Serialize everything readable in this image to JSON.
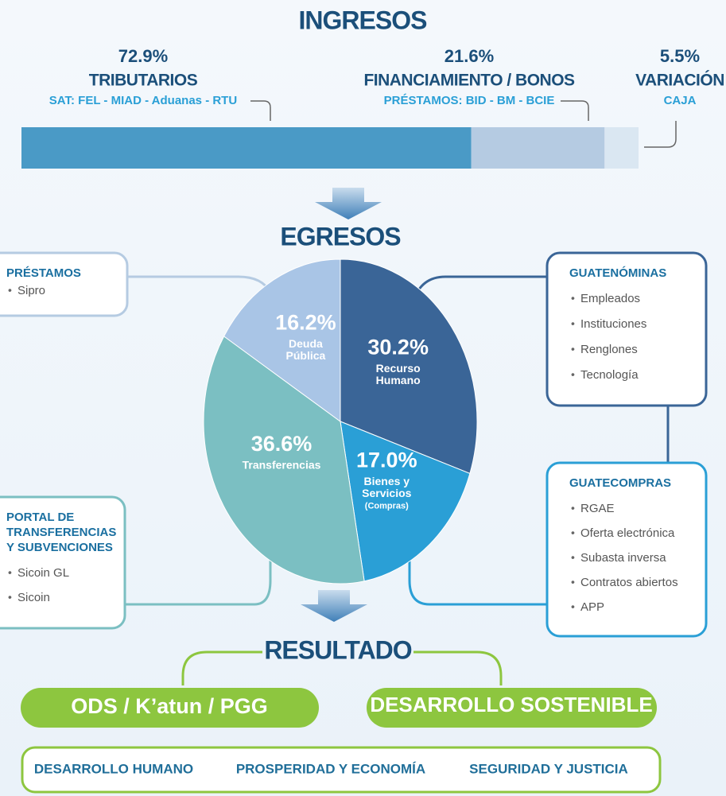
{
  "ingresos": {
    "title": "INGRESOS",
    "segments": [
      {
        "value": 72.9,
        "value_label": "72.9%",
        "name": "TRIBUTARIOS",
        "detail": "SAT:  FEL - MIAD - Aduanas - RTU",
        "color": "#4a9ac6"
      },
      {
        "value": 21.6,
        "value_label": "21.6%",
        "name": "FINANCIAMIENTO / BONOS",
        "detail": "PRÉSTAMOS:  BID - BM - BCIE",
        "color": "#b5cbe2"
      },
      {
        "value": 5.5,
        "value_label": "5.5%",
        "name": "VARIACIÓN",
        "detail": "CAJA",
        "color": "#dae7f2"
      }
    ]
  },
  "egresos": {
    "title": "EGRESOS",
    "slices": [
      {
        "value": 30.2,
        "value_label": "30.2%",
        "name": [
          "Recurso",
          "Humano"
        ],
        "color": "#3a6597"
      },
      {
        "value": 17.0,
        "value_label": "17.0%",
        "name": [
          "Bienes y",
          "Servicios",
          "(Compras)"
        ],
        "color": "#2a9fd6"
      },
      {
        "value": 36.6,
        "value_label": "36.6%",
        "name": [
          "Transferencias"
        ],
        "color": "#7bbfc2"
      },
      {
        "value": 16.2,
        "value_label": "16.2%",
        "name": [
          "Deuda",
          "Pública"
        ],
        "color": "#a9c5e6"
      }
    ]
  },
  "boxes": [
    {
      "title": [
        "PRÉSTAMOS"
      ],
      "items": [
        "Sipro"
      ]
    },
    {
      "title": [
        "GUATENÓMINAS"
      ],
      "items": [
        "Empleados",
        "Instituciones",
        "Renglones",
        "Tecnología"
      ]
    },
    {
      "title": [
        "GUATECOMPRAS"
      ],
      "items": [
        "RGAE",
        "Oferta electrónica",
        "Subasta inversa",
        "Contratos abiertos",
        "APP"
      ]
    },
    {
      "title": [
        "PORTAL DE",
        "TRANSFERENCIAS",
        "Y SUBVENCIONES"
      ],
      "items": [
        "Sicoin GL",
        "Sicoin"
      ]
    }
  ],
  "resultado": {
    "title": "RESULTADO",
    "pills": [
      "ODS / K’atun / PGG",
      "DESARROLLO SOSTENIBLE"
    ],
    "items": [
      "DESARROLLO HUMANO",
      "PROSPERIDAD Y ECONOMÍA",
      "SEGURIDAD Y JUSTICIA"
    ]
  }
}
